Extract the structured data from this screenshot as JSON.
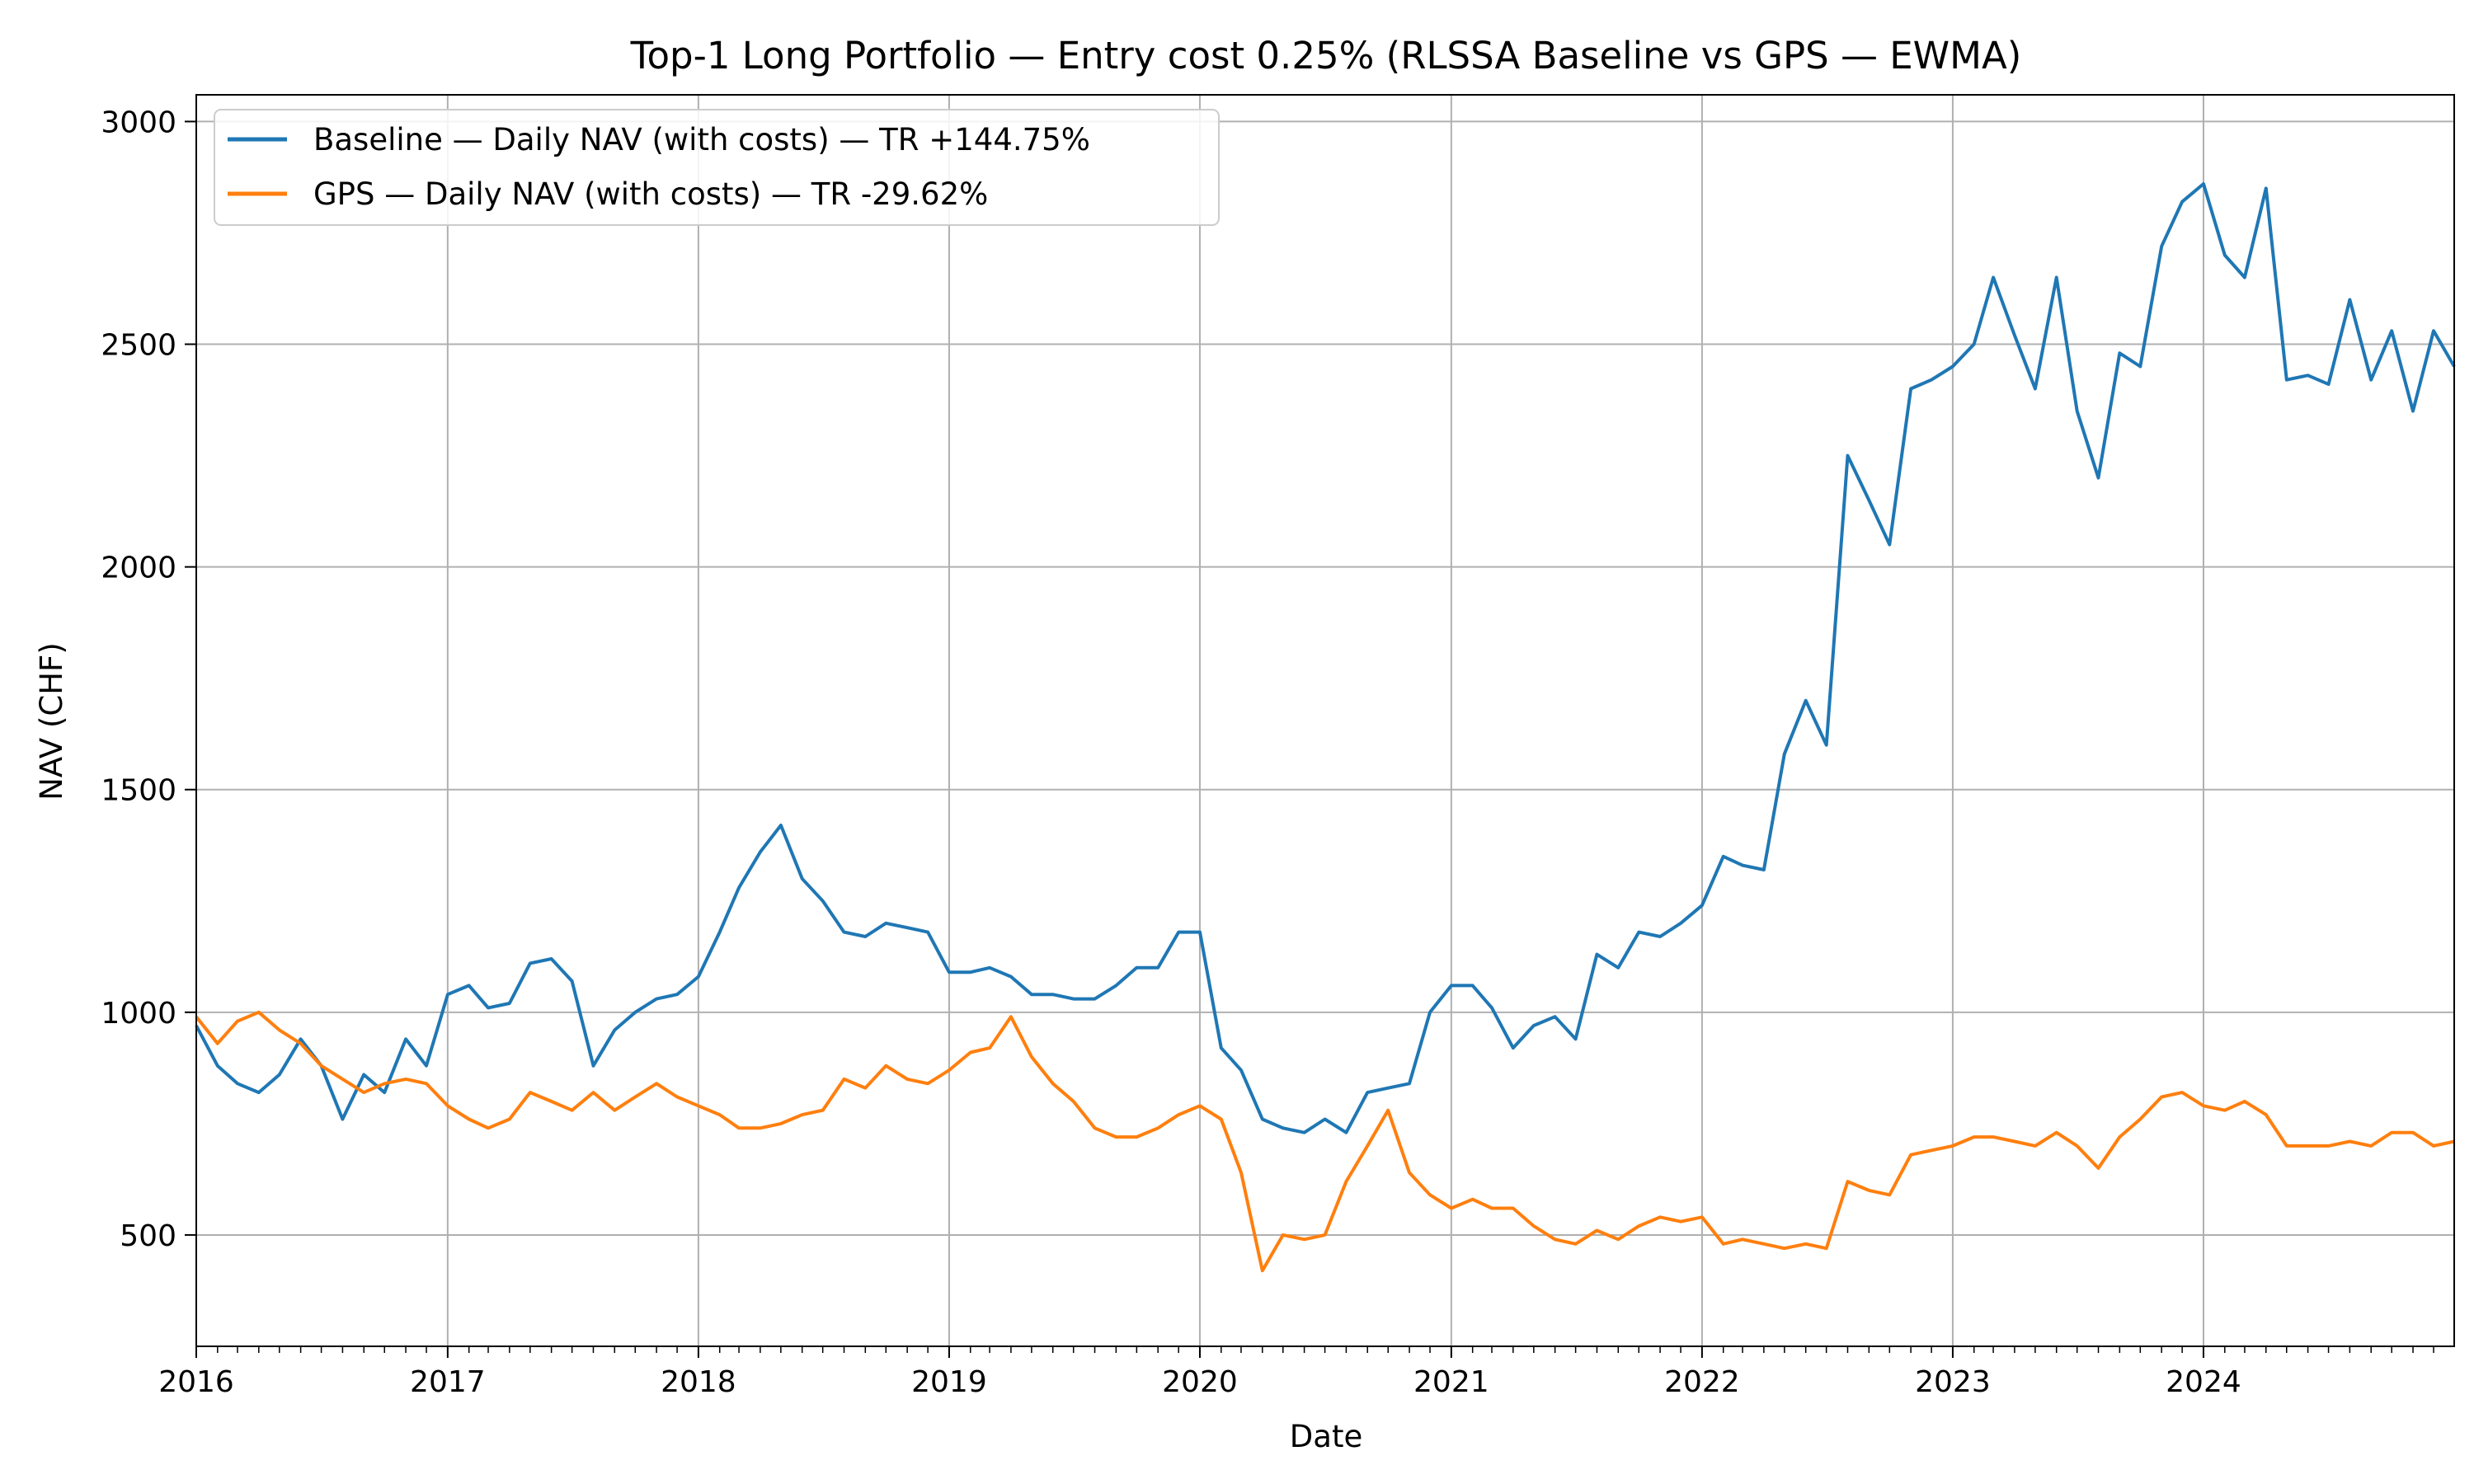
{
  "chart_data": {
    "type": "line",
    "title": "Top-1 Long Portfolio — Entry cost 0.25% (RLSSA Baseline vs GPS — EWMA)",
    "xlabel": "Date",
    "ylabel": "NAV (CHF)",
    "xlim": [
      "2016-01-01",
      "2024-12-31"
    ],
    "ylim": [
      250,
      3060
    ],
    "x_ticks": [
      "2016",
      "2017",
      "2018",
      "2019",
      "2020",
      "2021",
      "2022",
      "2023",
      "2024"
    ],
    "y_ticks": [
      500,
      1000,
      1500,
      2000,
      2500,
      3000
    ],
    "grid": true,
    "legend_position": "top-left",
    "series": [
      {
        "name": "Baseline — Daily NAV (with costs) — TR +144.75%",
        "color": "#1f77b4",
        "points": [
          [
            "2016-01-01",
            970
          ],
          [
            "2016-02-01",
            880
          ],
          [
            "2016-03-01",
            840
          ],
          [
            "2016-04-01",
            820
          ],
          [
            "2016-05-01",
            860
          ],
          [
            "2016-06-01",
            940
          ],
          [
            "2016-07-01",
            880
          ],
          [
            "2016-08-01",
            760
          ],
          [
            "2016-09-01",
            860
          ],
          [
            "2016-10-01",
            820
          ],
          [
            "2016-11-01",
            940
          ],
          [
            "2016-12-01",
            880
          ],
          [
            "2017-01-01",
            1040
          ],
          [
            "2017-02-01",
            1060
          ],
          [
            "2017-03-01",
            1010
          ],
          [
            "2017-04-01",
            1020
          ],
          [
            "2017-05-01",
            1110
          ],
          [
            "2017-06-01",
            1120
          ],
          [
            "2017-07-01",
            1070
          ],
          [
            "2017-08-01",
            880
          ],
          [
            "2017-09-01",
            960
          ],
          [
            "2017-10-01",
            1000
          ],
          [
            "2017-11-01",
            1030
          ],
          [
            "2017-12-01",
            1040
          ],
          [
            "2018-01-01",
            1080
          ],
          [
            "2018-02-01",
            1180
          ],
          [
            "2018-03-01",
            1280
          ],
          [
            "2018-04-01",
            1360
          ],
          [
            "2018-05-01",
            1420
          ],
          [
            "2018-06-01",
            1300
          ],
          [
            "2018-07-01",
            1250
          ],
          [
            "2018-08-01",
            1180
          ],
          [
            "2018-09-01",
            1170
          ],
          [
            "2018-10-01",
            1200
          ],
          [
            "2018-11-01",
            1190
          ],
          [
            "2018-12-01",
            1180
          ],
          [
            "2019-01-01",
            1090
          ],
          [
            "2019-02-01",
            1090
          ],
          [
            "2019-03-01",
            1100
          ],
          [
            "2019-04-01",
            1080
          ],
          [
            "2019-05-01",
            1040
          ],
          [
            "2019-06-01",
            1040
          ],
          [
            "2019-07-01",
            1030
          ],
          [
            "2019-08-01",
            1030
          ],
          [
            "2019-09-01",
            1060
          ],
          [
            "2019-10-01",
            1100
          ],
          [
            "2019-11-01",
            1100
          ],
          [
            "2019-12-01",
            1180
          ],
          [
            "2020-01-01",
            1180
          ],
          [
            "2020-02-01",
            920
          ],
          [
            "2020-03-01",
            870
          ],
          [
            "2020-04-01",
            760
          ],
          [
            "2020-05-01",
            740
          ],
          [
            "2020-06-01",
            730
          ],
          [
            "2020-07-01",
            760
          ],
          [
            "2020-08-01",
            730
          ],
          [
            "2020-09-01",
            820
          ],
          [
            "2020-10-01",
            830
          ],
          [
            "2020-11-01",
            840
          ],
          [
            "2020-12-01",
            1000
          ],
          [
            "2021-01-01",
            1060
          ],
          [
            "2021-02-01",
            1060
          ],
          [
            "2021-03-01",
            1010
          ],
          [
            "2021-04-01",
            920
          ],
          [
            "2021-05-01",
            970
          ],
          [
            "2021-06-01",
            990
          ],
          [
            "2021-07-01",
            940
          ],
          [
            "2021-08-01",
            1130
          ],
          [
            "2021-09-01",
            1100
          ],
          [
            "2021-10-01",
            1180
          ],
          [
            "2021-11-01",
            1170
          ],
          [
            "2021-12-01",
            1200
          ],
          [
            "2022-01-01",
            1240
          ],
          [
            "2022-02-01",
            1350
          ],
          [
            "2022-03-01",
            1330
          ],
          [
            "2022-04-01",
            1320
          ],
          [
            "2022-05-01",
            1580
          ],
          [
            "2022-06-01",
            1700
          ],
          [
            "2022-07-01",
            1600
          ],
          [
            "2022-08-01",
            2250
          ],
          [
            "2022-09-01",
            2150
          ],
          [
            "2022-10-01",
            2050
          ],
          [
            "2022-11-01",
            2400
          ],
          [
            "2022-12-01",
            2420
          ],
          [
            "2023-01-01",
            2450
          ],
          [
            "2023-02-01",
            2500
          ],
          [
            "2023-03-01",
            2650
          ],
          [
            "2023-04-01",
            2520
          ],
          [
            "2023-05-01",
            2400
          ],
          [
            "2023-06-01",
            2650
          ],
          [
            "2023-07-01",
            2350
          ],
          [
            "2023-08-01",
            2200
          ],
          [
            "2023-09-01",
            2480
          ],
          [
            "2023-10-01",
            2450
          ],
          [
            "2023-11-01",
            2720
          ],
          [
            "2023-12-01",
            2820
          ],
          [
            "2024-01-01",
            2860
          ],
          [
            "2024-02-01",
            2700
          ],
          [
            "2024-03-01",
            2650
          ],
          [
            "2024-04-01",
            2850
          ],
          [
            "2024-05-01",
            2420
          ],
          [
            "2024-06-01",
            2430
          ],
          [
            "2024-07-01",
            2410
          ],
          [
            "2024-08-01",
            2600
          ],
          [
            "2024-09-01",
            2420
          ],
          [
            "2024-10-01",
            2530
          ],
          [
            "2024-11-01",
            2350
          ],
          [
            "2024-12-01",
            2530
          ],
          [
            "2024-12-31",
            2450
          ]
        ]
      },
      {
        "name": "GPS — Daily NAV (with costs) — TR -29.62%",
        "color": "#ff7f0e",
        "points": [
          [
            "2016-01-01",
            990
          ],
          [
            "2016-02-01",
            930
          ],
          [
            "2016-03-01",
            980
          ],
          [
            "2016-04-01",
            1000
          ],
          [
            "2016-05-01",
            960
          ],
          [
            "2016-06-01",
            930
          ],
          [
            "2016-07-01",
            880
          ],
          [
            "2016-08-01",
            850
          ],
          [
            "2016-09-01",
            820
          ],
          [
            "2016-10-01",
            840
          ],
          [
            "2016-11-01",
            850
          ],
          [
            "2016-12-01",
            840
          ],
          [
            "2017-01-01",
            790
          ],
          [
            "2017-02-01",
            760
          ],
          [
            "2017-03-01",
            740
          ],
          [
            "2017-04-01",
            760
          ],
          [
            "2017-05-01",
            820
          ],
          [
            "2017-06-01",
            800
          ],
          [
            "2017-07-01",
            780
          ],
          [
            "2017-08-01",
            820
          ],
          [
            "2017-09-01",
            780
          ],
          [
            "2017-10-01",
            810
          ],
          [
            "2017-11-01",
            840
          ],
          [
            "2017-12-01",
            810
          ],
          [
            "2018-01-01",
            790
          ],
          [
            "2018-02-01",
            770
          ],
          [
            "2018-03-01",
            740
          ],
          [
            "2018-04-01",
            740
          ],
          [
            "2018-05-01",
            750
          ],
          [
            "2018-06-01",
            770
          ],
          [
            "2018-07-01",
            780
          ],
          [
            "2018-08-01",
            850
          ],
          [
            "2018-09-01",
            830
          ],
          [
            "2018-10-01",
            880
          ],
          [
            "2018-11-01",
            850
          ],
          [
            "2018-12-01",
            840
          ],
          [
            "2019-01-01",
            870
          ],
          [
            "2019-02-01",
            910
          ],
          [
            "2019-03-01",
            920
          ],
          [
            "2019-04-01",
            990
          ],
          [
            "2019-05-01",
            900
          ],
          [
            "2019-06-01",
            840
          ],
          [
            "2019-07-01",
            800
          ],
          [
            "2019-08-01",
            740
          ],
          [
            "2019-09-01",
            720
          ],
          [
            "2019-10-01",
            720
          ],
          [
            "2019-11-01",
            740
          ],
          [
            "2019-12-01",
            770
          ],
          [
            "2020-01-01",
            790
          ],
          [
            "2020-02-01",
            760
          ],
          [
            "2020-03-01",
            640
          ],
          [
            "2020-04-01",
            420
          ],
          [
            "2020-05-01",
            500
          ],
          [
            "2020-06-01",
            490
          ],
          [
            "2020-07-01",
            500
          ],
          [
            "2020-08-01",
            620
          ],
          [
            "2020-09-01",
            700
          ],
          [
            "2020-10-01",
            780
          ],
          [
            "2020-11-01",
            640
          ],
          [
            "2020-12-01",
            590
          ],
          [
            "2021-01-01",
            560
          ],
          [
            "2021-02-01",
            580
          ],
          [
            "2021-03-01",
            560
          ],
          [
            "2021-04-01",
            560
          ],
          [
            "2021-05-01",
            520
          ],
          [
            "2021-06-01",
            490
          ],
          [
            "2021-07-01",
            480
          ],
          [
            "2021-08-01",
            510
          ],
          [
            "2021-09-01",
            490
          ],
          [
            "2021-10-01",
            520
          ],
          [
            "2021-11-01",
            540
          ],
          [
            "2021-12-01",
            530
          ],
          [
            "2022-01-01",
            540
          ],
          [
            "2022-02-01",
            480
          ],
          [
            "2022-03-01",
            490
          ],
          [
            "2022-04-01",
            480
          ],
          [
            "2022-05-01",
            470
          ],
          [
            "2022-06-01",
            480
          ],
          [
            "2022-07-01",
            470
          ],
          [
            "2022-08-01",
            620
          ],
          [
            "2022-09-01",
            600
          ],
          [
            "2022-10-01",
            590
          ],
          [
            "2022-11-01",
            680
          ],
          [
            "2022-12-01",
            690
          ],
          [
            "2023-01-01",
            700
          ],
          [
            "2023-02-01",
            720
          ],
          [
            "2023-03-01",
            720
          ],
          [
            "2023-04-01",
            710
          ],
          [
            "2023-05-01",
            700
          ],
          [
            "2023-06-01",
            730
          ],
          [
            "2023-07-01",
            700
          ],
          [
            "2023-08-01",
            650
          ],
          [
            "2023-09-01",
            720
          ],
          [
            "2023-10-01",
            760
          ],
          [
            "2023-11-01",
            810
          ],
          [
            "2023-12-01",
            820
          ],
          [
            "2024-01-01",
            790
          ],
          [
            "2024-02-01",
            780
          ],
          [
            "2024-03-01",
            800
          ],
          [
            "2024-04-01",
            770
          ],
          [
            "2024-05-01",
            700
          ],
          [
            "2024-06-01",
            700
          ],
          [
            "2024-07-01",
            700
          ],
          [
            "2024-08-01",
            710
          ],
          [
            "2024-09-01",
            700
          ],
          [
            "2024-10-01",
            730
          ],
          [
            "2024-11-01",
            730
          ],
          [
            "2024-12-01",
            700
          ],
          [
            "2024-12-31",
            710
          ]
        ]
      }
    ]
  }
}
